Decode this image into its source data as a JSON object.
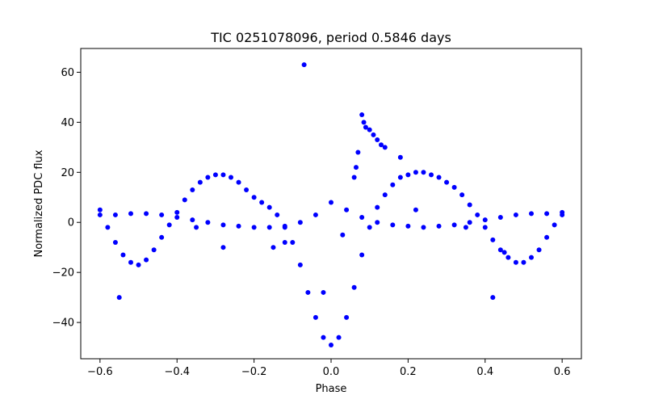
{
  "chart_data": {
    "type": "scatter",
    "title": "TIC 0251078096, period 0.5846 days",
    "xlabel": "Phase",
    "ylabel": "Normalized PDC flux",
    "xlim": [
      -0.65,
      0.65
    ],
    "ylim": [
      -54.5,
      69.5
    ],
    "grid": false,
    "marker_color": "#0000ff",
    "x_ticks": [
      {
        "value": -0.6,
        "label": "−0.6"
      },
      {
        "value": -0.4,
        "label": "−0.4"
      },
      {
        "value": -0.2,
        "label": "−0.2"
      },
      {
        "value": 0.0,
        "label": "0.0"
      },
      {
        "value": 0.2,
        "label": "0.2"
      },
      {
        "value": 0.4,
        "label": "0.4"
      },
      {
        "value": 0.6,
        "label": "0.6"
      }
    ],
    "y_ticks": [
      {
        "value": -40,
        "label": "−40"
      },
      {
        "value": -20,
        "label": "−20"
      },
      {
        "value": 0,
        "label": "0"
      },
      {
        "value": 20,
        "label": "20"
      },
      {
        "value": 40,
        "label": "40"
      },
      {
        "value": 60,
        "label": "60"
      }
    ],
    "series": [
      {
        "values_description_free": true,
        "x": [
          -0.6,
          -0.58,
          -0.56,
          -0.54,
          -0.52,
          -0.5,
          -0.48,
          -0.46,
          -0.44,
          -0.42,
          -0.4,
          -0.38,
          -0.36,
          -0.34,
          -0.32,
          -0.3,
          -0.28,
          -0.26,
          -0.24,
          -0.22,
          -0.2,
          -0.18,
          -0.16,
          -0.14,
          -0.12,
          -0.1,
          -0.08,
          -0.06,
          -0.04,
          -0.02,
          0.0,
          0.02,
          0.04,
          0.06,
          0.08,
          0.1,
          0.12,
          0.14,
          0.16,
          0.18,
          0.2,
          0.22,
          0.24,
          0.26,
          0.28,
          0.3,
          0.32,
          0.34,
          0.36,
          0.38,
          0.4,
          0.42,
          0.44,
          0.46,
          0.48,
          0.5,
          0.52,
          0.54,
          0.56,
          0.58,
          0.6
        ],
        "y": [
          5,
          -2,
          -8,
          -13,
          -16,
          -17,
          -15,
          -11,
          -6,
          -1,
          4,
          9,
          13,
          16,
          18,
          19,
          19,
          18,
          16,
          13,
          10,
          8,
          6,
          3,
          -2,
          -8,
          -17,
          -28,
          -38,
          -46,
          -49,
          -46,
          -38,
          -26,
          -13,
          -2,
          6,
          11,
          15,
          18,
          19,
          20,
          20,
          19,
          18,
          16,
          14,
          11,
          7,
          3,
          -2,
          -7,
          -11,
          -14,
          -16,
          -16,
          -14,
          -11,
          -6,
          -1,
          4
        ]
      },
      {
        "x": [
          -0.6,
          -0.56,
          -0.52,
          -0.48,
          -0.44,
          -0.4,
          -0.36,
          -0.32,
          -0.28,
          -0.24,
          -0.2,
          -0.16,
          -0.12,
          -0.08,
          -0.04,
          0.0,
          0.04,
          0.08,
          0.12,
          0.16,
          0.2,
          0.24,
          0.28,
          0.32,
          0.36,
          0.4,
          0.44,
          0.48,
          0.52,
          0.56,
          0.6
        ],
        "y": [
          3,
          3,
          3.5,
          3.5,
          3,
          2,
          1,
          0,
          -1,
          -1.5,
          -2,
          -2,
          -1.5,
          0,
          3,
          8,
          5,
          2,
          0,
          -1,
          -1.5,
          -2,
          -1.5,
          -1,
          0,
          1,
          2,
          3,
          3.5,
          3.5,
          3
        ]
      },
      {
        "x": [
          -0.07,
          0.08,
          0.085,
          0.09,
          0.1,
          0.11,
          0.12,
          0.13,
          0.14,
          0.07,
          0.065,
          0.06,
          -0.55,
          -0.02,
          0.03,
          0.35,
          0.42,
          -0.15,
          -0.28,
          -0.35,
          0.18,
          0.45,
          -0.12,
          0.22
        ],
        "y": [
          63,
          43,
          40,
          38,
          37,
          35,
          33,
          31,
          30,
          28,
          22,
          18,
          -30,
          -28,
          -5,
          -2,
          -30,
          -10,
          -10,
          -2,
          26,
          -12,
          -8,
          5
        ]
      }
    ]
  }
}
